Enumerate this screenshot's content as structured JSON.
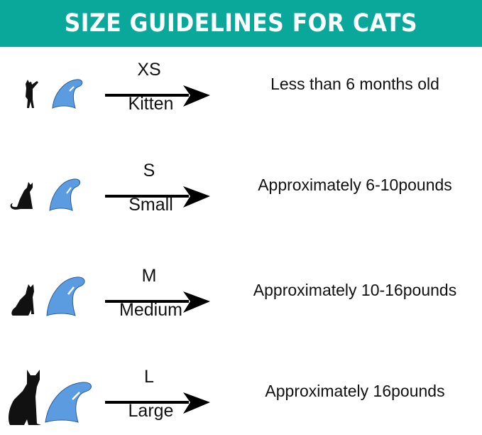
{
  "title": "SIZE GUIDELINES FOR CATS",
  "colors": {
    "header": "#0aa89b",
    "claw": "#5b9be0",
    "text": "#111111"
  },
  "rows": [
    {
      "size": "XS",
      "name": "Kitten",
      "description": "Less than 6 months old",
      "cat_icon": "kitten-silhouette",
      "claw_icon": "nail-cap"
    },
    {
      "size": "S",
      "name": "Small",
      "description": "Approximately 6-10pounds",
      "cat_icon": "small-cat-silhouette",
      "claw_icon": "nail-cap"
    },
    {
      "size": "M",
      "name": "Medium",
      "description": "Approximately 10-16pounds",
      "cat_icon": "medium-cat-silhouette",
      "claw_icon": "nail-cap"
    },
    {
      "size": "L",
      "name": "Large",
      "description": "Approximately 16pounds",
      "cat_icon": "large-cat-silhouette",
      "claw_icon": "nail-cap"
    }
  ]
}
